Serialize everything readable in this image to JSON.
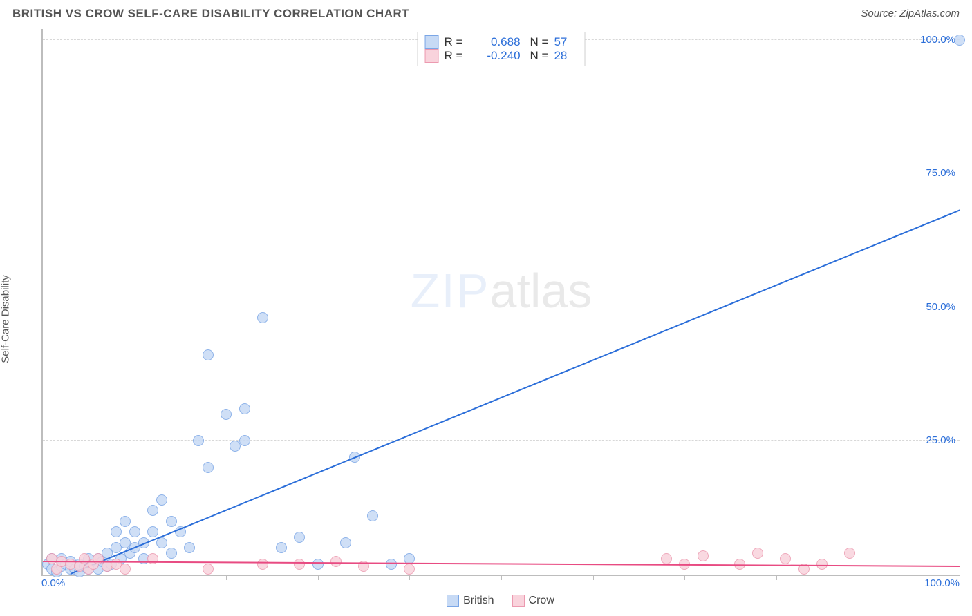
{
  "header": {
    "title": "BRITISH VS CROW SELF-CARE DISABILITY CORRELATION CHART",
    "source_prefix": "Source: ",
    "source_name": "ZipAtlas.com"
  },
  "chart": {
    "type": "scatter",
    "ylabel": "Self-Care Disability",
    "background_color": "#ffffff",
    "grid_color": "#d8d8d8",
    "axis_color": "#bdbdbd",
    "label_color": "#2b6ed9",
    "title_color": "#555555",
    "title_fontsize": 17,
    "ylabel_fontsize": 15,
    "ticklabel_fontsize": 15,
    "xlim": [
      0,
      100
    ],
    "ylim": [
      0,
      102
    ],
    "x_ticklabels": {
      "min": "0.0%",
      "max": "100.0%"
    },
    "y_gridlines": [
      {
        "value": 25,
        "label": "25.0%"
      },
      {
        "value": 50,
        "label": "50.0%"
      },
      {
        "value": 75,
        "label": "75.0%"
      },
      {
        "value": 100,
        "label": "100.0%"
      }
    ],
    "x_minor_ticks": [
      10,
      20,
      30,
      40,
      50,
      60,
      70,
      80,
      90
    ],
    "marker_radius": 8,
    "marker_border_width": 1,
    "series": [
      {
        "name": "British",
        "fill_color": "#c7daf5",
        "stroke_color": "#7ba6e6",
        "trend_color": "#2b6ed9",
        "legend_R": "0.688",
        "legend_N": "57",
        "trendline": {
          "x1": 3,
          "y1": 0,
          "x2": 100,
          "y2": 68
        },
        "points": [
          [
            0.5,
            2
          ],
          [
            1,
            1
          ],
          [
            1,
            3
          ],
          [
            1.5,
            0.5
          ],
          [
            2,
            1.5
          ],
          [
            2,
            3
          ],
          [
            2.5,
            2
          ],
          [
            3,
            1
          ],
          [
            3,
            2.5
          ],
          [
            3.5,
            1
          ],
          [
            4,
            0.5
          ],
          [
            4,
            2
          ],
          [
            4.5,
            1.5
          ],
          [
            5,
            1
          ],
          [
            5,
            3
          ],
          [
            5.5,
            2
          ],
          [
            6,
            1
          ],
          [
            6,
            3
          ],
          [
            6.5,
            2.5
          ],
          [
            7,
            1.5
          ],
          [
            7,
            4
          ],
          [
            7.5,
            2
          ],
          [
            8,
            5
          ],
          [
            8,
            8
          ],
          [
            8.5,
            3
          ],
          [
            9,
            6
          ],
          [
            9,
            10
          ],
          [
            9.5,
            4
          ],
          [
            10,
            5
          ],
          [
            10,
            8
          ],
          [
            11,
            3
          ],
          [
            11,
            6
          ],
          [
            12,
            8
          ],
          [
            12,
            12
          ],
          [
            13,
            6
          ],
          [
            13,
            14
          ],
          [
            14,
            4
          ],
          [
            14,
            10
          ],
          [
            15,
            8
          ],
          [
            16,
            5
          ],
          [
            17,
            25
          ],
          [
            18,
            20
          ],
          [
            18,
            41
          ],
          [
            20,
            30
          ],
          [
            21,
            24
          ],
          [
            22,
            31
          ],
          [
            22,
            25
          ],
          [
            24,
            48
          ],
          [
            26,
            5
          ],
          [
            28,
            7
          ],
          [
            30,
            2
          ],
          [
            33,
            6
          ],
          [
            34,
            22
          ],
          [
            36,
            11
          ],
          [
            38,
            2
          ],
          [
            40,
            3
          ],
          [
            100,
            100
          ]
        ]
      },
      {
        "name": "Crow",
        "fill_color": "#f9d3dc",
        "stroke_color": "#ec9ab0",
        "trend_color": "#e84b82",
        "legend_R": "-0.240",
        "legend_N": "28",
        "trendline": {
          "x1": 0,
          "y1": 2.3,
          "x2": 100,
          "y2": 1.4
        },
        "points": [
          [
            1,
            3
          ],
          [
            1.5,
            1
          ],
          [
            2,
            2.5
          ],
          [
            3,
            2
          ],
          [
            4,
            1.5
          ],
          [
            4.5,
            3
          ],
          [
            5,
            1
          ],
          [
            5.5,
            2
          ],
          [
            6,
            3
          ],
          [
            7,
            1.5
          ],
          [
            8,
            2
          ],
          [
            9,
            1
          ],
          [
            12,
            3
          ],
          [
            18,
            1
          ],
          [
            24,
            2
          ],
          [
            28,
            2
          ],
          [
            32,
            2.5
          ],
          [
            35,
            1.5
          ],
          [
            40,
            1
          ],
          [
            68,
            3
          ],
          [
            70,
            2
          ],
          [
            72,
            3.5
          ],
          [
            76,
            2
          ],
          [
            78,
            4
          ],
          [
            81,
            3
          ],
          [
            83,
            1
          ],
          [
            85,
            2
          ],
          [
            88,
            4
          ]
        ]
      }
    ],
    "watermark": {
      "part1": "ZIP",
      "part2": "atlas"
    },
    "legend_bottom_labels": [
      "British",
      "Crow"
    ]
  }
}
